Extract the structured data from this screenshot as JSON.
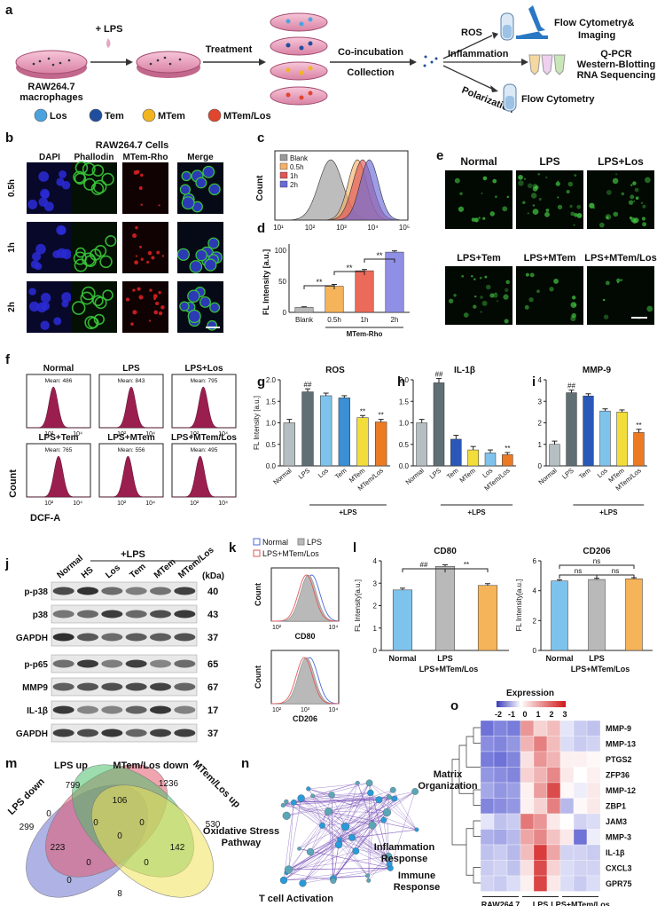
{
  "panels": {
    "a": "a",
    "b": "b",
    "c": "c",
    "d": "d",
    "e": "e",
    "f": "f",
    "g": "g",
    "h": "h",
    "i": "i",
    "j": "j",
    "k": "k",
    "l": "l",
    "m": "m",
    "n": "n",
    "o": "o"
  },
  "a": {
    "plus_lps": "+ LPS",
    "treatment": "Treatment",
    "coinc1": "Co-incubation",
    "coinc2": "Collection",
    "cells1": "RAW264.7",
    "cells2": "macrophages",
    "ros": "ROS",
    "inflammation": "Inflammation",
    "polarization": "Polarization",
    "out_ros1": "Flow Cytometry&",
    "out_ros2": "Imaging",
    "out_inf1": "Q-PCR",
    "out_inf2": "Western-Blotting",
    "out_inf3": "RNA Sequencing",
    "out_pol": "Flow Cytometry",
    "legend": [
      {
        "label": "Los",
        "color": "#4aa3df"
      },
      {
        "label": "Tem",
        "color": "#1f4e9e"
      },
      {
        "label": "MTem",
        "color": "#f2b51f"
      },
      {
        "label": "MTem/Los",
        "color": "#e0452e"
      }
    ]
  },
  "b": {
    "title": "RAW264.7 Cells",
    "cols": [
      "DAPI",
      "Phallodin",
      "MTem-Rho",
      "Merge"
    ],
    "rows": [
      "0.5h",
      "1h",
      "2h"
    ]
  },
  "c": {
    "ylabel": "Count",
    "legend": [
      "Blank",
      "0.5h",
      "1h",
      "2h"
    ],
    "colors": [
      "#9a9a9a",
      "#f2b06a",
      "#e05555",
      "#6a6ad8"
    ],
    "ticks": [
      "10¹",
      "10²",
      "10³",
      "10⁴",
      "10⁵"
    ]
  },
  "d": {
    "ylabel": "FL Intensity [a.u.]",
    "xlabels": [
      "Blank",
      "0.5h",
      "1h",
      "2h"
    ],
    "group": "MTem-Rho",
    "yticks": [
      "0",
      "50",
      "100"
    ],
    "sig": "**"
  },
  "e": {
    "labels": [
      "Normal",
      "LPS",
      "LPS+Los",
      "LPS+Tem",
      "LPS+MTem",
      "LPS+MTem/Los"
    ]
  },
  "f": {
    "panels": [
      {
        "title": "Normal",
        "mean": "Mean: 486"
      },
      {
        "title": "LPS",
        "mean": "Mean: 843"
      },
      {
        "title": "LPS+Los",
        "mean": "Mean: 795"
      },
      {
        "title": "LPS+Tem",
        "mean": "Mean: 765"
      },
      {
        "title": "LPS+MTem",
        "mean": "Mean: 556"
      },
      {
        "title": "LPS+MTem/Los",
        "mean": "Mean: 495"
      }
    ],
    "ylabel": "Count",
    "xlabel": "DCF-A",
    "ticks": [
      "10²",
      "10⁴"
    ]
  },
  "chart_data": [
    {
      "panel": "g",
      "type": "bar",
      "title": "ROS",
      "ylabel": "FL Intensity [a.u.]",
      "categories": [
        "Normal",
        "LPS",
        "Los",
        "Tem",
        "MTem",
        "MTem/Los"
      ],
      "values": [
        1.0,
        1.72,
        1.63,
        1.58,
        1.12,
        1.02
      ],
      "errors": [
        0.08,
        0.07,
        0.06,
        0.05,
        0.05,
        0.06
      ],
      "ylim": [
        0,
        2.0
      ],
      "yticks": [
        "0.0",
        "0.5",
        "1.0",
        "1.5",
        "2.0"
      ],
      "marks": [
        "",
        "##",
        "",
        "",
        "**",
        "**"
      ],
      "group_label": "+LPS"
    },
    {
      "panel": "h",
      "type": "bar",
      "title": "IL-1β",
      "categories": [
        "Normal",
        "LPS",
        "Tem",
        "MTem",
        "Los",
        "MTem/Los"
      ],
      "values": [
        1.0,
        1.93,
        0.62,
        0.37,
        0.3,
        0.26
      ],
      "errors": [
        0.08,
        0.1,
        0.09,
        0.08,
        0.07,
        0.05
      ],
      "ylim": [
        0,
        2.0
      ],
      "yticks": [
        "0.0",
        "0.5",
        "1.0",
        "1.5",
        "2.0"
      ],
      "marks": [
        "",
        "##",
        "",
        "",
        "",
        "**"
      ],
      "group_label": "+LPS"
    },
    {
      "panel": "i",
      "type": "bar",
      "title": "MMP-9",
      "categories": [
        "Normal",
        "LPS",
        "Tem",
        "Los",
        "MTem",
        "MTem/Los"
      ],
      "values": [
        1.0,
        3.4,
        3.25,
        2.55,
        2.5,
        1.55
      ],
      "errors": [
        0.15,
        0.12,
        0.1,
        0.1,
        0.1,
        0.15
      ],
      "ylim": [
        0,
        4
      ],
      "yticks": [
        "0",
        "1",
        "2",
        "3",
        "4"
      ],
      "marks": [
        "",
        "##",
        "",
        "",
        "",
        "**"
      ],
      "group_label": "+LPS"
    },
    {
      "panel": "l1",
      "type": "bar",
      "title": "CD80",
      "ylabel": "FL Intensity[a.u.]",
      "categories": [
        "Normal",
        "LPS",
        "LPS+MTem/Los"
      ],
      "values": [
        2.7,
        3.75,
        2.9
      ],
      "errors": [
        0.08,
        0.07,
        0.08
      ],
      "ylim": [
        0,
        4
      ],
      "yticks": [
        "0",
        "1",
        "2",
        "3",
        "4"
      ],
      "marks": [
        "##",
        "**"
      ]
    },
    {
      "panel": "l2",
      "type": "bar",
      "title": "CD206",
      "ylabel": "FL Intensity[a.u.]",
      "categories": [
        "Normal",
        "LPS",
        "LPS+MTem/Los"
      ],
      "values": [
        4.65,
        4.75,
        4.8
      ],
      "errors": [
        0.08,
        0.08,
        0.07
      ],
      "ylim": [
        0,
        6
      ],
      "yticks": [
        "0",
        "2",
        "4",
        "6"
      ],
      "marks": [
        "ns",
        "ns",
        "ns"
      ]
    },
    {
      "panel": "d",
      "type": "bar",
      "categories": [
        "Blank",
        "0.5h",
        "1h",
        "2h"
      ],
      "values": [
        8,
        42,
        67,
        97
      ],
      "errors": [
        1,
        3,
        2,
        2
      ],
      "ylim": [
        0,
        110
      ]
    }
  ],
  "g_colors": [
    "#b5bfc2",
    "#5f6f74",
    "#7ec3ec",
    "#3b8fd4",
    "#f2dd3a",
    "#ec7a23"
  ],
  "h_colors": [
    "#b5bfc2",
    "#5f6f74",
    "#2a58b8",
    "#f2dd3a",
    "#7ec3ec",
    "#ec7a23"
  ],
  "i_colors": [
    "#b5bfc2",
    "#5f6f74",
    "#2a58b8",
    "#7ec3ec",
    "#f2dd3a",
    "#ec7a23"
  ],
  "l_colors": [
    "#7ec3ec",
    "#b9b9b9",
    "#f5b35a"
  ],
  "d_colors": [
    "#b9b9b9",
    "#f5b35a",
    "#ec6a5a",
    "#8f8fe6"
  ],
  "j": {
    "plus": "+LPS",
    "cols": [
      "Normal",
      "HS",
      "Los",
      "Tem",
      "MTem",
      "MTem/Los"
    ],
    "kda": "(kDa)",
    "rows": [
      {
        "name": "p-p38",
        "kda": "40"
      },
      {
        "name": "p38",
        "kda": "43"
      },
      {
        "name": "GAPDH",
        "kda": "37"
      },
      {
        "name": "p-p65",
        "kda": "65"
      },
      {
        "name": "MMP9",
        "kda": "67"
      },
      {
        "name": "IL-1β",
        "kda": "17"
      },
      {
        "name": "GAPDH",
        "kda": "37"
      }
    ]
  },
  "k": {
    "legend": [
      "Normal",
      "LPS",
      "LPS+MTem/Los"
    ],
    "ylabel": "Count",
    "x1": "CD80",
    "x2": "CD206",
    "ticks": [
      "10²",
      "10³",
      "10⁴"
    ]
  },
  "m": {
    "sets": [
      "LPS down",
      "LPS up",
      "MTem/Los down",
      "MTem/Los up"
    ],
    "numbers": [
      "799",
      "1236",
      "299",
      "106",
      "530",
      "0",
      "0",
      "0",
      "223",
      "0",
      "142",
      "0",
      "0",
      "0",
      "8"
    ]
  },
  "n": {
    "labels": [
      "Matrix Organization",
      "Oxidative Stress Pathway",
      "Inflammation Response",
      "Immune Response",
      "T cell Activation"
    ]
  },
  "o": {
    "title": "Expression",
    "scale": [
      "-2",
      "-1",
      "0",
      "1",
      "2",
      "3"
    ],
    "genes": [
      "MMP-9",
      "MMP-13",
      "PTGS2",
      "ZFP36",
      "MMP-12",
      "ZBP1",
      "JAM3",
      "MMP-3",
      "IL-1β",
      "CXCL3",
      "GPR75"
    ],
    "groups": [
      "RAW264.7",
      "LPS",
      "LPS+MTem/Los"
    ]
  }
}
